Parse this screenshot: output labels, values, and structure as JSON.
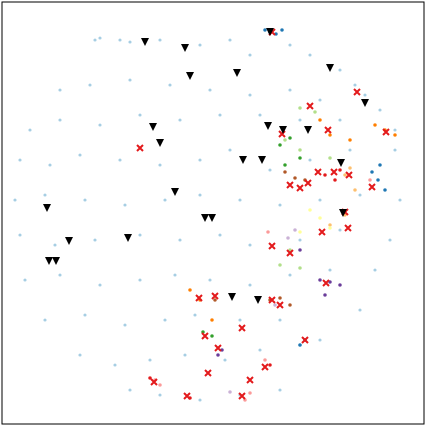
{
  "chart_data": {
    "type": "scatter",
    "xlim": [
      2,
      424
    ],
    "ylim": [
      424,
      2
    ],
    "tick_labels": false,
    "grid": false,
    "series": [
      {
        "color": "#a6cee3",
        "marker": "o",
        "x": [
          100,
          120,
          160,
          200,
          230,
          250,
          290,
          310,
          340,
          355,
          380,
          60,
          90,
          130,
          170,
          210,
          250,
          290,
          320,
          30,
          60,
          100,
          140,
          180,
          220,
          260,
          300,
          340,
          395,
          20,
          50,
          80,
          120,
          160,
          200,
          230,
          270,
          310,
          350,
          395,
          15,
          45,
          85,
          125,
          165,
          200,
          240,
          280,
          320,
          360,
          400,
          20,
          55,
          95,
          140,
          180,
          220,
          250,
          300,
          340,
          390,
          25,
          60,
          100,
          140,
          175,
          210,
          250,
          290,
          330,
          375,
          45,
          85,
          125,
          165,
          195,
          240,
          280,
          320,
          360,
          80,
          115,
          150,
          185,
          225,
          260,
          300,
          130,
          160,
          200,
          240,
          280,
          95,
          130,
          365
        ],
        "values": [
          38,
          40,
          40,
          45,
          40,
          55,
          45,
          55,
          70,
          85,
          110,
          90,
          85,
          80,
          85,
          90,
          95,
          90,
          100,
          130,
          120,
          125,
          115,
          120,
          115,
          115,
          120,
          120,
          130,
          160,
          165,
          155,
          160,
          165,
          160,
          150,
          170,
          160,
          150,
          150,
          200,
          195,
          200,
          205,
          200,
          195,
          200,
          205,
          200,
          195,
          200,
          235,
          245,
          240,
          235,
          240,
          235,
          245,
          240,
          230,
          240,
          280,
          275,
          285,
          280,
          275,
          280,
          285,
          275,
          270,
          270,
          320,
          315,
          325,
          320,
          315,
          320,
          320,
          340,
          310,
          355,
          365,
          360,
          355,
          360,
          350,
          345,
          390,
          395,
          400,
          395,
          390,
          40,
          42,
          95
        ]
      },
      {
        "color": "#1f78b4",
        "marker": "o",
        "x": [
          265,
          270,
          276,
          282,
          372,
          378,
          385,
          380,
          300,
          305
        ],
        "values": [
          30,
          32,
          34,
          30,
          172,
          180,
          190,
          165,
          345,
          340
        ]
      },
      {
        "color": "#b2df8a",
        "marker": "o",
        "x": [
          300,
          315,
          285,
          300,
          330,
          290,
          280,
          300
        ],
        "values": [
          108,
          112,
          140,
          150,
          158,
          250,
          265,
          268
        ]
      },
      {
        "color": "#33a02c",
        "marker": "o",
        "x": [
          280,
          290,
          300,
          285,
          203,
          212
        ],
        "values": [
          145,
          138,
          158,
          165,
          332,
          336
        ]
      },
      {
        "color": "#ff7f00",
        "marker": "o",
        "x": [
          320,
          330,
          350,
          375,
          385,
          395,
          190,
          200,
          212
        ],
        "values": [
          120,
          135,
          140,
          125,
          130,
          135,
          290,
          300,
          320
        ]
      },
      {
        "color": "#fdbf6f",
        "marker": "o",
        "x": [
          345,
          350,
          355,
          345,
          330
        ],
        "values": [
          175,
          168,
          190,
          215,
          225
        ]
      },
      {
        "color": "#b15928",
        "marker": "o",
        "x": [
          285,
          295,
          305,
          270,
          280,
          290,
          215
        ],
        "values": [
          172,
          178,
          180,
          300,
          298,
          305,
          300
        ]
      },
      {
        "color": "#6a3d9a",
        "marker": "o",
        "x": [
          320,
          330,
          340,
          325,
          222,
          218,
          300
        ],
        "values": [
          280,
          282,
          285,
          295,
          350,
          355,
          250
        ]
      },
      {
        "color": "#fb9a99",
        "marker": "o",
        "x": [
          370,
          268,
          155,
          160,
          245,
          250,
          265
        ],
        "values": [
          180,
          232,
          380,
          385,
          400,
          393,
          360
        ]
      },
      {
        "color": "#e31a1c",
        "marker": "o",
        "x": [
          325,
          335,
          340,
          270,
          150,
          190
        ],
        "values": [
          175,
          180,
          170,
          365,
          378,
          398
        ]
      },
      {
        "color": "#ffff99",
        "marker": "o",
        "x": [
          310,
          320,
          330,
          300
        ],
        "values": [
          210,
          218,
          228,
          232
        ]
      },
      {
        "color": "#cab2d6",
        "marker": "o",
        "x": [
          288,
          295,
          275,
          230
        ],
        "values": [
          238,
          230,
          305,
          392
        ]
      },
      {
        "color": "#e31a1c",
        "marker": "x",
        "x": [
          272,
          140,
          357,
          310,
          328,
          386,
          282,
          318,
          334,
          349,
          308,
          290,
          372,
          300,
          345,
          322,
          348,
          272,
          290,
          326,
          272,
          280,
          215,
          199,
          242,
          205,
          305,
          218,
          208,
          265,
          250,
          154,
          187,
          242
        ],
        "values": [
          32,
          148,
          92,
          106,
          130,
          132,
          134,
          172,
          172,
          175,
          183,
          185,
          187,
          188,
          212,
          232,
          228,
          246,
          253,
          283,
          300,
          305,
          296,
          298,
          328,
          336,
          340,
          348,
          373,
          367,
          380,
          382,
          396,
          396
        ]
      },
      {
        "color": "#000000",
        "marker": "v",
        "x": [
          145,
          185,
          270,
          330,
          190,
          237,
          365,
          153,
          160,
          268,
          283,
          308,
          243,
          262,
          175,
          205,
          212,
          47,
          69,
          128,
          49,
          56,
          232,
          258,
          341,
          343
        ],
        "values": [
          42,
          48,
          32,
          68,
          76,
          73,
          103,
          127,
          143,
          126,
          130,
          130,
          160,
          160,
          192,
          218,
          218,
          208,
          241,
          238,
          261,
          261,
          297,
          300,
          163,
          213
        ]
      }
    ]
  }
}
